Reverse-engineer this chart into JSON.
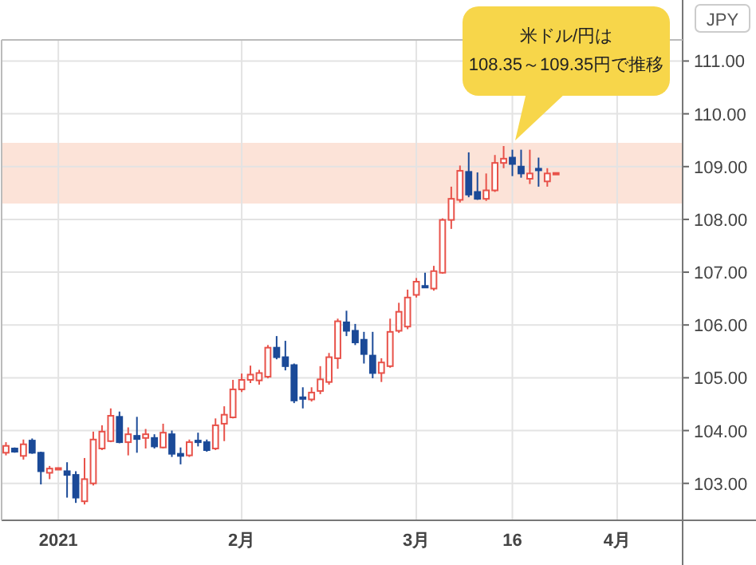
{
  "chart_data": {
    "type": "candlestick",
    "ylabel": "JPY",
    "annotations": [
      "米ドル/円は\n108.35～109.35円で推移"
    ],
    "categories": [
      null,
      null,
      null,
      null,
      null,
      null,
      "2021",
      null,
      null,
      null,
      null,
      null,
      null,
      null,
      null,
      null,
      null,
      null,
      null,
      null,
      null,
      null,
      null,
      null,
      null,
      null,
      null,
      "2月",
      null,
      null,
      null,
      null,
      null,
      null,
      null,
      null,
      null,
      null,
      null,
      null,
      null,
      null,
      null,
      null,
      null,
      null,
      null,
      "3月",
      null,
      null,
      null,
      null,
      null,
      null,
      null,
      null,
      null,
      null,
      "16",
      null,
      null,
      null,
      null,
      null,
      null,
      null,
      null,
      null,
      null,
      null,
      "4月",
      null,
      null,
      null,
      null,
      null,
      null,
      null
    ],
    "ohlc": [
      [
        103.58,
        103.78,
        103.53,
        103.71
      ],
      [
        103.66,
        103.68,
        103.58,
        103.6
      ],
      [
        103.52,
        103.83,
        103.45,
        103.74
      ],
      [
        103.81,
        103.85,
        103.56,
        103.58
      ],
      [
        103.58,
        103.6,
        102.98,
        103.23
      ],
      [
        103.2,
        103.33,
        103.08,
        103.28
      ],
      [
        103.27,
        103.3,
        103.26,
        103.29
      ],
      [
        103.23,
        103.4,
        102.73,
        103.16
      ],
      [
        103.16,
        103.23,
        102.63,
        102.73
      ],
      [
        102.66,
        103.48,
        102.6,
        103.08
      ],
      [
        103.0,
        103.98,
        102.96,
        103.83
      ],
      [
        103.66,
        104.1,
        103.63,
        103.98
      ],
      [
        103.8,
        104.42,
        103.78,
        104.28
      ],
      [
        104.26,
        104.36,
        103.76,
        103.78
      ],
      [
        103.78,
        104.06,
        103.53,
        103.93
      ],
      [
        103.9,
        104.26,
        103.58,
        103.84
      ],
      [
        103.86,
        104.03,
        103.66,
        103.93
      ],
      [
        103.86,
        103.93,
        103.66,
        103.7
      ],
      [
        103.68,
        104.13,
        103.66,
        103.96
      ],
      [
        103.93,
        104.0,
        103.5,
        103.56
      ],
      [
        103.56,
        103.68,
        103.36,
        103.52
      ],
      [
        103.53,
        103.83,
        103.5,
        103.78
      ],
      [
        103.81,
        103.96,
        103.7,
        103.78
      ],
      [
        103.78,
        103.83,
        103.6,
        103.63
      ],
      [
        103.66,
        104.23,
        103.63,
        104.1
      ],
      [
        104.13,
        104.46,
        103.8,
        104.3
      ],
      [
        104.25,
        104.96,
        104.23,
        104.78
      ],
      [
        104.78,
        105.08,
        104.73,
        104.96
      ],
      [
        104.96,
        105.23,
        104.9,
        105.06
      ],
      [
        104.95,
        105.15,
        104.87,
        105.09
      ],
      [
        105.02,
        105.62,
        104.99,
        105.57
      ],
      [
        105.57,
        105.79,
        105.35,
        105.39
      ],
      [
        105.39,
        105.7,
        105.14,
        105.22
      ],
      [
        105.24,
        105.27,
        104.52,
        104.57
      ],
      [
        104.63,
        104.82,
        104.42,
        104.62
      ],
      [
        104.59,
        104.82,
        104.55,
        104.72
      ],
      [
        104.75,
        105.22,
        104.69,
        104.97
      ],
      [
        104.92,
        105.47,
        104.87,
        105.39
      ],
      [
        105.37,
        106.12,
        105.17,
        106.07
      ],
      [
        106.05,
        106.27,
        105.79,
        105.89
      ],
      [
        105.89,
        106.02,
        105.62,
        105.67
      ],
      [
        105.72,
        105.87,
        105.27,
        105.45
      ],
      [
        105.42,
        105.87,
        104.99,
        105.09
      ],
      [
        105.09,
        105.37,
        104.92,
        105.29
      ],
      [
        105.22,
        106.12,
        105.19,
        105.87
      ],
      [
        105.89,
        106.42,
        105.85,
        106.25
      ],
      [
        105.97,
        106.67,
        105.92,
        106.52
      ],
      [
        106.57,
        106.89,
        106.52,
        106.82
      ],
      [
        106.74,
        106.99,
        106.7,
        106.71
      ],
      [
        106.69,
        107.12,
        106.65,
        107.02
      ],
      [
        106.99,
        108.02,
        106.97,
        107.99
      ],
      [
        107.99,
        108.62,
        107.82,
        108.39
      ],
      [
        108.37,
        109.02,
        108.32,
        108.92
      ],
      [
        108.9,
        109.27,
        108.42,
        108.47
      ],
      [
        108.52,
        108.89,
        108.37,
        108.39
      ],
      [
        108.39,
        108.87,
        108.35,
        108.55
      ],
      [
        108.55,
        109.22,
        108.52,
        109.07
      ],
      [
        109.07,
        109.39,
        108.97,
        109.15
      ],
      [
        109.17,
        109.32,
        108.82,
        109.05
      ],
      [
        109.0,
        109.32,
        108.79,
        108.87
      ],
      [
        108.77,
        109.32,
        108.67,
        108.87
      ],
      [
        108.96,
        109.17,
        108.62,
        108.93
      ],
      [
        108.72,
        108.97,
        108.62,
        108.87
      ],
      [
        108.86,
        108.88,
        108.86,
        108.88
      ],
      null,
      null,
      null,
      null,
      null,
      null,
      null,
      null,
      null,
      null,
      null,
      null,
      null,
      null
    ],
    "ylim": [
      102.3,
      111.4
    ],
    "yticks": [
      {
        "value": 103,
        "label": "103.00"
      },
      {
        "value": 104,
        "label": "104.00"
      },
      {
        "value": 105,
        "label": "105.00"
      },
      {
        "value": 106,
        "label": "106.00"
      },
      {
        "value": 107,
        "label": "107.00"
      },
      {
        "value": 108,
        "label": "108.00"
      },
      {
        "value": 109,
        "label": "109.00"
      },
      {
        "value": 110,
        "label": "110.00"
      },
      {
        "value": 111,
        "label": "111.00"
      }
    ],
    "bands": [
      {
        "axis": "y",
        "from": 108.3,
        "to": 109.45,
        "color": "#fce3d8"
      }
    ],
    "grid": true
  }
}
